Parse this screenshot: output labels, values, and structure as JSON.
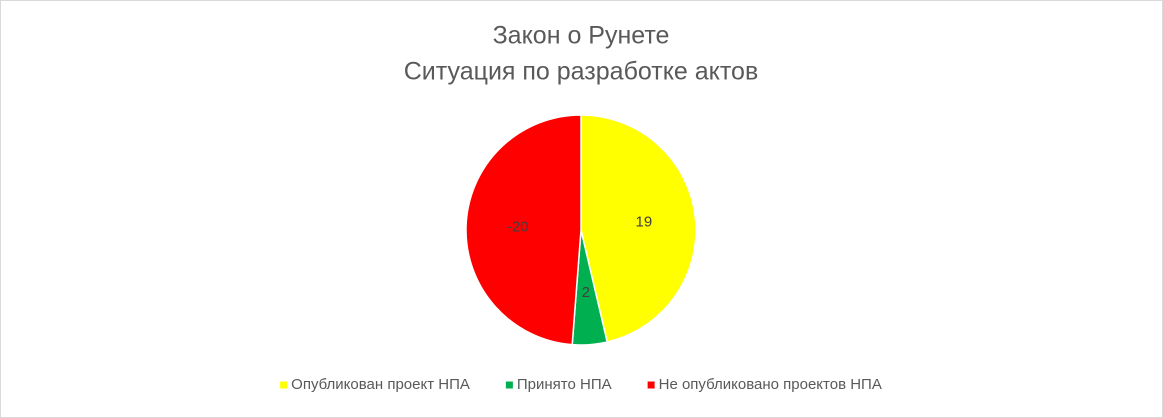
{
  "chart_data": {
    "type": "pie",
    "title": "Закон о Рунете",
    "subtitle": "Ситуация по разработке актов",
    "categories": [
      "Опубликован проект НПА",
      "Принято НПА",
      "Не опубликовано проектов НПА"
    ],
    "values": [
      19,
      2,
      -20
    ],
    "colors": [
      "#ffff00",
      "#00b050",
      "#ff0000"
    ],
    "legend": "bottom"
  }
}
